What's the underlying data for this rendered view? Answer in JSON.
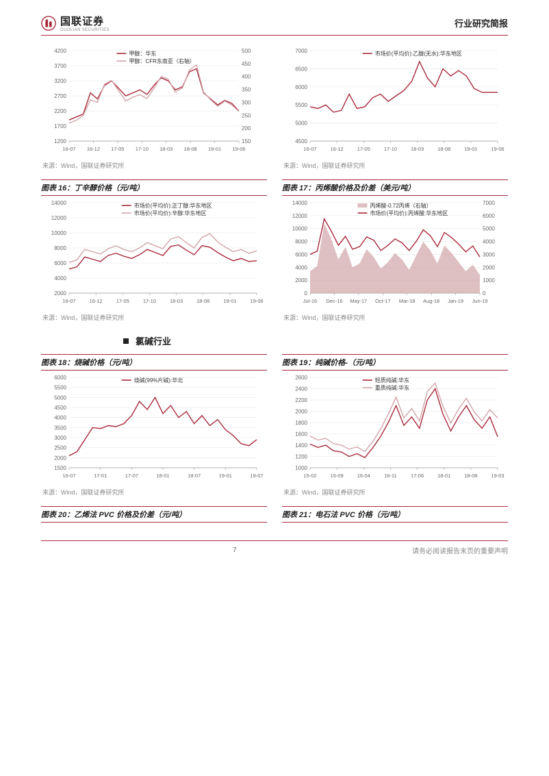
{
  "header": {
    "logo_cn": "国联证券",
    "logo_en": "GUOLIAN SECURITIES",
    "doc_type": "行业研究简报",
    "logo_color": "#a8283a"
  },
  "source_line": "来源：Wind，国联证券研究所",
  "section": {
    "heading": "氯碱行业"
  },
  "footer": {
    "page": "7",
    "disclaimer": "请务必阅读报告末页的重要声明"
  },
  "colors": {
    "primary": "#a8283a",
    "secondary": "#d1a5a8",
    "grid": "#e5e5e5",
    "axis": "#999",
    "text": "#666"
  },
  "charts": [
    {
      "id": "c1",
      "title": null,
      "type": "line-dual",
      "x_labels": [
        "16-07",
        "16-12",
        "17-05",
        "17-10",
        "18-03",
        "18-08",
        "19-01",
        "19-06"
      ],
      "y_left": {
        "min": 1200,
        "max": 4200,
        "step": 500
      },
      "y_right": {
        "min": 150,
        "max": 500,
        "step": 50
      },
      "legend": [
        "甲醇：华东",
        "甲醇：CFR东南亚（右轴）"
      ],
      "series": [
        {
          "color": "#a8283a",
          "width": 1.4,
          "axis": "left",
          "data": [
            1900,
            2000,
            2100,
            2800,
            2600,
            3050,
            3200,
            2950,
            2700,
            2800,
            2900,
            2750,
            3050,
            3300,
            3200,
            2900,
            3000,
            3500,
            3600,
            2800,
            2600,
            2400,
            2550,
            2450,
            2200
          ]
        },
        {
          "color": "#d1a5a8",
          "width": 1.4,
          "axis": "right",
          "data": [
            220,
            230,
            250,
            310,
            300,
            370,
            385,
            345,
            305,
            320,
            330,
            315,
            355,
            400,
            390,
            340,
            355,
            425,
            445,
            340,
            310,
            285,
            305,
            290,
            265
          ]
        }
      ]
    },
    {
      "id": "c2",
      "title": null,
      "type": "line",
      "x_labels": [
        "16-07",
        "16-12",
        "17-05",
        "17-10",
        "18-03",
        "18-08",
        "19-01",
        "19-06"
      ],
      "y_left": {
        "min": 4500,
        "max": 7000,
        "step": 500
      },
      "legend": [
        "市场价(平均价):乙醇(无水):华东地区"
      ],
      "series": [
        {
          "color": "#a8283a",
          "width": 1.4,
          "data": [
            5450,
            5400,
            5500,
            5300,
            5350,
            5800,
            5400,
            5450,
            5700,
            5800,
            5600,
            5750,
            5900,
            6150,
            6700,
            6250,
            6000,
            6500,
            6300,
            6450,
            6300,
            5950,
            5850,
            5850,
            5850
          ]
        }
      ]
    },
    {
      "id": "c3",
      "title": "图表 16：丁辛醇价格（元/吨）",
      "type": "line",
      "x_labels": [
        "16-07",
        "16-12",
        "17-05",
        "17-10",
        "18-03",
        "18-08",
        "19-01",
        "19-06"
      ],
      "y_left": {
        "min": 2000,
        "max": 14000,
        "step": 2000
      },
      "legend": [
        "市场价(平均价):正丁醇:华东地区",
        "市场价(平均价):辛醇:华东地区"
      ],
      "series": [
        {
          "color": "#a8283a",
          "width": 1.4,
          "data": [
            5200,
            5500,
            6800,
            6500,
            6200,
            7000,
            7300,
            6900,
            6600,
            7100,
            7800,
            7400,
            7000,
            8200,
            8400,
            7700,
            7100,
            8300,
            8100,
            7400,
            6800,
            6300,
            6600,
            6200,
            6300
          ]
        },
        {
          "color": "#d1a5a8",
          "width": 1.4,
          "data": [
            6100,
            6400,
            7800,
            7500,
            7200,
            7900,
            8300,
            7800,
            7500,
            8000,
            8700,
            8300,
            7900,
            9200,
            9500,
            8700,
            8000,
            9400,
            9900,
            8800,
            8100,
            7500,
            7800,
            7300,
            7600
          ]
        }
      ]
    },
    {
      "id": "c4",
      "title": "图表 17：丙烯酸价格及价差（美元/吨）",
      "type": "area-line-dual",
      "x_labels": [
        "Jul-16",
        "Dec-16",
        "May-17",
        "Oct-17",
        "Mar-18",
        "Aug-18",
        "Jan-19",
        "Jun-19"
      ],
      "y_left": {
        "min": 0,
        "max": 14000,
        "step": 2000
      },
      "y_right": {
        "min": 0,
        "max": 7000,
        "step": 1000
      },
      "legend": [
        "丙烯酸-0.72丙烯（右轴）",
        "市场价(平均价):丙烯酸:华东地区"
      ],
      "series": [
        {
          "type": "area",
          "color": "#d1a5a8",
          "axis": "right",
          "data": [
            1700,
            2100,
            5400,
            4200,
            2600,
            3600,
            2000,
            2300,
            3400,
            2800,
            1900,
            2400,
            3100,
            2600,
            1800,
            2900,
            4000,
            3300,
            2300,
            3700,
            3100,
            2400,
            1700,
            2200,
            1400
          ]
        },
        {
          "type": "line",
          "color": "#a8283a",
          "width": 1.4,
          "axis": "left",
          "data": [
            6000,
            6500,
            11500,
            9600,
            7400,
            8800,
            6800,
            7200,
            8700,
            8200,
            6600,
            7400,
            8400,
            7800,
            6600,
            8000,
            9800,
            8900,
            7200,
            9400,
            8600,
            7600,
            6400,
            7300,
            5600
          ]
        }
      ]
    },
    {
      "id": "c5",
      "title": "图表 18：烧碱价格（元/吨）",
      "type": "line",
      "x_labels": [
        "16-07",
        "17-01",
        "17-07",
        "18-01",
        "18-07",
        "19-01",
        "19-07"
      ],
      "y_left": {
        "min": 1500,
        "max": 6000,
        "step": 500
      },
      "legend": [
        "烧碱(99%片碱):华北"
      ],
      "series": [
        {
          "color": "#a8283a",
          "width": 1.4,
          "data": [
            2100,
            2300,
            2900,
            3500,
            3450,
            3600,
            3550,
            3700,
            4100,
            4800,
            4400,
            5000,
            4200,
            4600,
            4000,
            4300,
            3700,
            4100,
            3600,
            3900,
            3400,
            3100,
            2700,
            2600,
            2900
          ]
        }
      ]
    },
    {
      "id": "c6",
      "title": "图表 19：纯碱价格-（元/吨）",
      "type": "line",
      "x_labels": [
        "15-02",
        "15-09",
        "16-04",
        "16-11",
        "17-06",
        "18-01",
        "18-08",
        "19-03"
      ],
      "y_left": {
        "min": 1000,
        "max": 2600,
        "step": 200
      },
      "legend": [
        "轻质纯碱:华东",
        "重质纯碱:华东"
      ],
      "series": [
        {
          "color": "#a8283a",
          "width": 1.4,
          "data": [
            1420,
            1360,
            1400,
            1300,
            1280,
            1200,
            1250,
            1180,
            1350,
            1550,
            1800,
            2100,
            1750,
            1900,
            1700,
            2200,
            2400,
            1950,
            1650,
            1900,
            2100,
            1850,
            1700,
            1900,
            1550
          ]
        },
        {
          "color": "#d1a5a8",
          "width": 1.4,
          "data": [
            1560,
            1490,
            1520,
            1430,
            1400,
            1330,
            1370,
            1290,
            1460,
            1680,
            1950,
            2250,
            1880,
            2050,
            1830,
            2350,
            2500,
            2090,
            1790,
            2040,
            2230,
            1990,
            1830,
            2030,
            1880
          ]
        }
      ]
    },
    {
      "id": "c7",
      "title": "图表 20：乙烯法 PVC 价格及价差（元/吨）",
      "type": "placeholder"
    },
    {
      "id": "c8",
      "title": "图表 21：电石法 PVC 价格（元/吨）",
      "type": "placeholder"
    }
  ]
}
